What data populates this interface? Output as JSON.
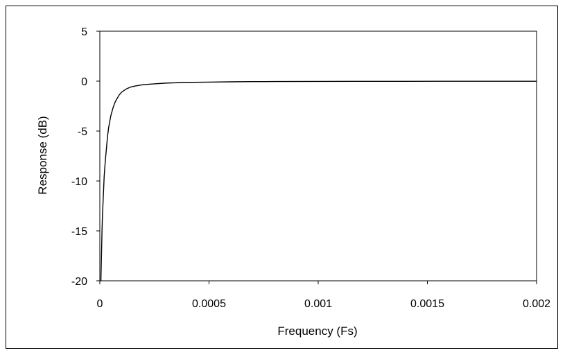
{
  "chart_data": {
    "type": "line",
    "title": "",
    "xlabel": "Frequency (Fs)",
    "ylabel": "Response (dB)",
    "xlim": [
      0,
      0.002
    ],
    "ylim": [
      -20,
      5
    ],
    "xticks": [
      0,
      0.0005,
      0.001,
      0.0015,
      0.002
    ],
    "xtick_labels": [
      "0",
      "0.0005",
      "0.001",
      "0.0015",
      "0.002"
    ],
    "yticks": [
      5,
      0,
      -5,
      -10,
      -15,
      -20
    ],
    "ytick_labels": [
      "5",
      "0",
      "-5",
      "-10",
      "-15",
      "-20"
    ],
    "grid": false,
    "legend": "none",
    "line_color": "#000000",
    "series": [
      {
        "x": [
          5e-06,
          8e-06,
          1e-05,
          1.2e-05,
          1.5e-05,
          2e-05,
          2.5e-05,
          3e-05,
          3.5e-05,
          4e-05,
          5e-05,
          6e-05,
          7e-05,
          8e-05,
          9e-05,
          0.0001,
          0.00012,
          0.00014,
          0.00016,
          0.00018,
          0.0002,
          0.00025,
          0.0003,
          0.0004,
          0.0005,
          0.0006,
          0.0007,
          0.0008,
          0.001,
          0.0012,
          0.0014,
          0.0016,
          0.0018,
          0.002
        ],
        "y": [
          -20,
          -17,
          -15,
          -13.5,
          -12,
          -9.5,
          -8,
          -6.8,
          -5.6,
          -4.7,
          -3.5,
          -2.7,
          -2.1,
          -1.7,
          -1.35,
          -1.1,
          -0.8,
          -0.6,
          -0.5,
          -0.42,
          -0.35,
          -0.27,
          -0.2,
          -0.13,
          -0.1,
          -0.07,
          -0.05,
          -0.04,
          -0.03,
          -0.02,
          -0.02,
          -0.01,
          -0.01,
          -0.01
        ]
      }
    ]
  }
}
